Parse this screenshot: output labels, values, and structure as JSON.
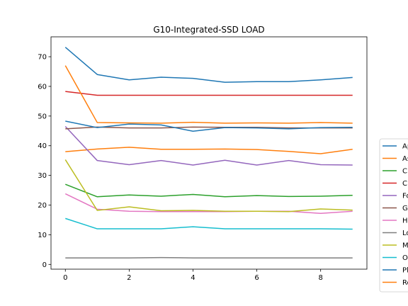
{
  "chart_data": {
    "type": "line",
    "title": "G10-Integrated-SSD LOAD",
    "xlabel": "",
    "ylabel": "",
    "x": [
      0,
      1,
      2,
      3,
      4,
      5,
      6,
      7,
      8,
      9
    ],
    "xlim": [
      -0.45,
      9.45
    ],
    "ylim": [
      -1.6,
      76.7
    ],
    "xticks": [
      0,
      2,
      4,
      6,
      8
    ],
    "yticks": [
      0,
      10,
      20,
      30,
      40,
      50,
      60,
      70
    ],
    "grid": false,
    "legend_position": "right",
    "series": [
      {
        "name": "Ap",
        "color": "#1f77b4",
        "values": [
          73.2,
          64.0,
          62.2,
          63.1,
          62.7,
          61.4,
          61.6,
          61.6,
          62.2,
          63.0
        ]
      },
      {
        "name": "As",
        "color": "#ff7f0e",
        "values": [
          38.0,
          38.9,
          39.5,
          38.8,
          38.8,
          38.9,
          38.7,
          38.1,
          37.3,
          38.8
        ]
      },
      {
        "name": "C",
        "color": "#2ca02c",
        "values": [
          27.0,
          22.8,
          23.4,
          23.0,
          23.6,
          22.8,
          23.2,
          22.9,
          23.0,
          23.3
        ]
      },
      {
        "name": "C",
        "color": "#d62728",
        "values": [
          58.3,
          57.0,
          57.0,
          57.0,
          57.0,
          57.0,
          57.0,
          57.0,
          57.0,
          57.0
        ]
      },
      {
        "name": "Fo",
        "color": "#9467bd",
        "values": [
          46.5,
          35.0,
          33.6,
          35.0,
          33.5,
          35.1,
          33.5,
          35.0,
          33.6,
          33.5
        ]
      },
      {
        "name": "G",
        "color": "#8c564b",
        "values": [
          45.7,
          46.3,
          46.0,
          46.0,
          46.3,
          46.2,
          46.2,
          46.0,
          46.0,
          46.0
        ]
      },
      {
        "name": "H",
        "color": "#e377c2",
        "values": [
          23.8,
          18.6,
          17.9,
          17.8,
          17.8,
          17.8,
          17.9,
          17.9,
          17.2,
          17.9
        ]
      },
      {
        "name": "Lo",
        "color": "#7f7f7f",
        "values": [
          2.2,
          2.2,
          2.2,
          2.3,
          2.2,
          2.2,
          2.2,
          2.2,
          2.2,
          2.2
        ]
      },
      {
        "name": "M",
        "color": "#bcbd22",
        "values": [
          35.3,
          18.2,
          19.4,
          18.1,
          18.2,
          17.9,
          17.9,
          17.8,
          18.7,
          18.3
        ]
      },
      {
        "name": "O",
        "color": "#17becf",
        "values": [
          15.5,
          12.0,
          12.0,
          12.0,
          12.7,
          12.0,
          12.0,
          12.0,
          12.0,
          11.9
        ]
      },
      {
        "name": "Pl",
        "color": "#1f77b4",
        "values": [
          48.3,
          46.1,
          47.3,
          47.0,
          44.9,
          46.1,
          46.0,
          45.7,
          46.1,
          46.2
        ]
      },
      {
        "name": "Re",
        "color": "#ff7f0e",
        "values": [
          67.0,
          47.8,
          47.7,
          47.6,
          47.9,
          47.6,
          47.7,
          47.6,
          47.8,
          47.6
        ]
      }
    ]
  }
}
